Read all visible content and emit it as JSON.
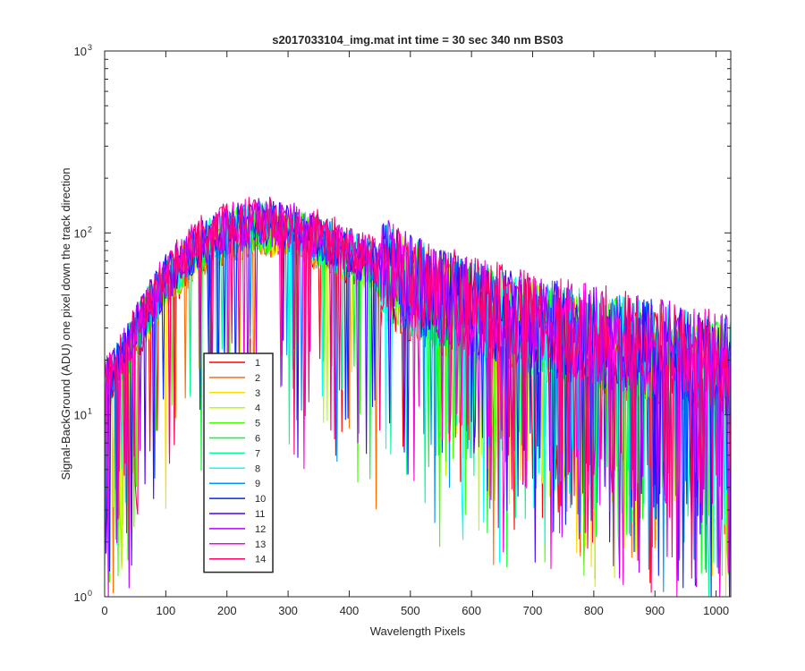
{
  "chart_data": {
    "type": "line",
    "title": "s2017033104_img.mat int time = 30 sec  340 nm BS03",
    "xlabel": "Wavelength Pixels",
    "ylabel": "Signal-BackGround (ADU) one pixel down the track direction",
    "xlim": [
      0,
      1024
    ],
    "ylim": [
      1,
      1000
    ],
    "yscale": "log",
    "grid": false,
    "legend_position": "lower-left",
    "x_ticks": [
      "0",
      "100",
      "200",
      "300",
      "400",
      "500",
      "600",
      "700",
      "800",
      "900",
      "1000"
    ],
    "y_ticks": [
      {
        "base": "10",
        "exp": "0"
      },
      {
        "base": "10",
        "exp": "1"
      },
      {
        "base": "10",
        "exp": "2"
      },
      {
        "base": "10",
        "exp": "3"
      }
    ],
    "envelope": {
      "x": [
        0,
        30,
        60,
        100,
        150,
        200,
        250,
        300,
        350,
        400,
        450,
        500,
        550,
        600,
        650,
        700,
        750,
        800,
        850,
        900,
        950,
        1000,
        1024
      ],
      "y": [
        15,
        22,
        35,
        58,
        88,
        108,
        118,
        112,
        98,
        82,
        68,
        55,
        46,
        40,
        36,
        33,
        30,
        28,
        26,
        24,
        22,
        20,
        19
      ]
    },
    "series": [
      {
        "name": "1",
        "color": "#ff0000"
      },
      {
        "name": "2",
        "color": "#ff6e00"
      },
      {
        "name": "3",
        "color": "#ffdc00"
      },
      {
        "name": "4",
        "color": "#b4ff00"
      },
      {
        "name": "5",
        "color": "#46ff00"
      },
      {
        "name": "6",
        "color": "#00ff28"
      },
      {
        "name": "7",
        "color": "#00ff96"
      },
      {
        "name": "8",
        "color": "#00ffff"
      },
      {
        "name": "9",
        "color": "#0096ff"
      },
      {
        "name": "10",
        "color": "#0028ff"
      },
      {
        "name": "11",
        "color": "#4600ff"
      },
      {
        "name": "12",
        "color": "#b400ff"
      },
      {
        "name": "13",
        "color": "#ff00dc"
      },
      {
        "name": "14",
        "color": "#ff006e"
      }
    ]
  }
}
